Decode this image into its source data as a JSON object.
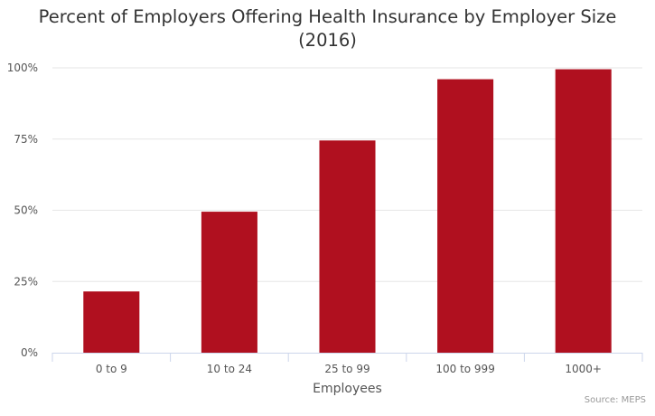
{
  "chart_data": {
    "type": "bar",
    "title_lines": [
      "Percent of Employers Offering Health Insurance by Employer Size",
      "(2016)"
    ],
    "xlabel": "Employees",
    "ylabel": "",
    "categories": [
      "0 to 9",
      "10 to 24",
      "25 to 99",
      "100 to 999",
      "1000+"
    ],
    "series": [
      {
        "values": [
          21.5,
          49.5,
          74.5,
          96,
          99.5
        ],
        "color": "#b0101f"
      }
    ],
    "ylim": [
      0,
      100
    ],
    "yticks": [
      0,
      25,
      50,
      75,
      100
    ],
    "ytick_labels": [
      "0%",
      "25%",
      "50%",
      "75%",
      "100%"
    ],
    "grid": true,
    "legend": "none",
    "credit": "Source: MEPS"
  }
}
